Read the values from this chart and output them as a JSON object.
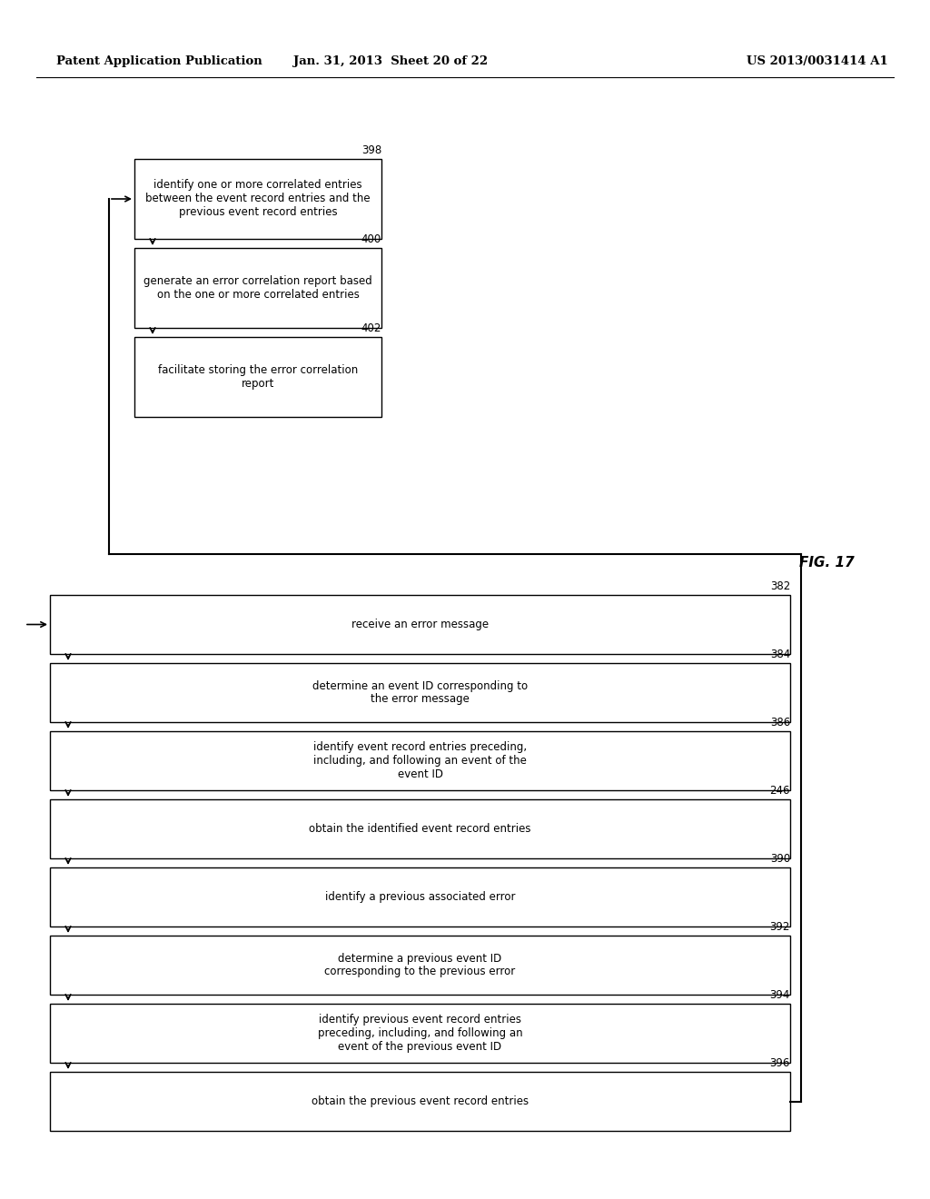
{
  "title_left": "Patent Application Publication",
  "title_mid": "Jan. 31, 2013  Sheet 20 of 22",
  "title_right": "US 2013/0031414 A1",
  "fig_label": "FIG. 17",
  "bg_color": "#ffffff",
  "top_boxes": [
    {
      "id": "398",
      "text": "identify one or more correlated entries\nbetween the event record entries and the\nprevious event record entries"
    },
    {
      "id": "400",
      "text": "generate an error correlation report based\non the one or more correlated entries"
    },
    {
      "id": "402",
      "text": "facilitate storing the error correlation\nreport"
    }
  ],
  "bottom_boxes": [
    {
      "id": "382",
      "text": "receive an error message"
    },
    {
      "id": "384",
      "text": "determine an event ID corresponding to\nthe error message"
    },
    {
      "id": "386",
      "text": "identify event record entries preceding,\nincluding, and following an event of the\nevent ID"
    },
    {
      "id": "246",
      "text": "obtain the identified event record entries"
    },
    {
      "id": "390",
      "text": "identify a previous associated error"
    },
    {
      "id": "392",
      "text": "determine a previous event ID\ncorresponding to the previous error"
    },
    {
      "id": "394",
      "text": "identify previous event record entries\npreceding, including, and following an\nevent of the previous event ID"
    },
    {
      "id": "396",
      "text": "obtain the previous event record entries"
    }
  ]
}
